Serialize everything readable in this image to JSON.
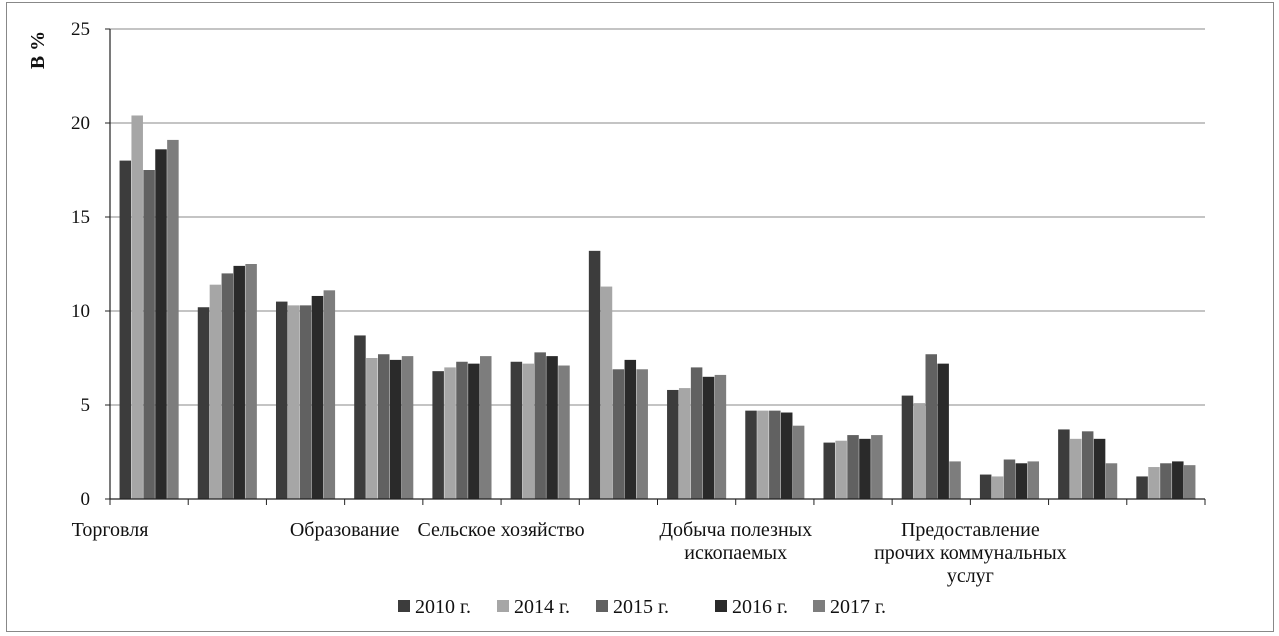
{
  "chart_data": {
    "type": "bar",
    "title": "",
    "xlabel": "",
    "ylabel": "В %",
    "ylim": [
      0,
      25
    ],
    "yticks": [
      0,
      5,
      10,
      15,
      20,
      25
    ],
    "grid": true,
    "legend_position": "bottom",
    "category_labels": [
      {
        "slot": 0,
        "lines": [
          "Торговля"
        ]
      },
      {
        "slot": 3,
        "lines": [
          "Образование"
        ]
      },
      {
        "slot": 5,
        "lines": [
          "Сельское хозяйство"
        ]
      },
      {
        "slot": 8,
        "lines": [
          "Добыча полезных",
          "ископаемых"
        ]
      },
      {
        "slot": 11,
        "lines": [
          "Предоставление",
          "прочих коммунальных",
          "услуг"
        ]
      }
    ],
    "categories": [
      "Торговля",
      "",
      "",
      "Образование",
      "",
      "",
      "Сельское хозяйство",
      "",
      "",
      "Добыча полезных ископаемых",
      "",
      "",
      "Предоставление прочих коммунальных услуг",
      ""
    ],
    "series": [
      {
        "name": "2010 г.",
        "color": "#3c3c3c",
        "values": [
          18.0,
          10.2,
          10.5,
          8.7,
          6.8,
          7.3,
          13.2,
          5.8,
          4.7,
          3.0,
          5.5,
          1.3,
          3.7,
          1.2
        ]
      },
      {
        "name": "2014 г.",
        "color": "#a6a6a6",
        "values": [
          20.4,
          11.4,
          10.3,
          7.5,
          7.0,
          7.2,
          11.3,
          5.9,
          4.7,
          3.1,
          5.1,
          1.2,
          3.2,
          1.7
        ]
      },
      {
        "name": "2015 г.",
        "color": "#616161",
        "values": [
          17.5,
          12.0,
          10.3,
          7.7,
          7.3,
          7.8,
          6.9,
          7.0,
          4.7,
          3.4,
          7.7,
          2.1,
          3.6,
          1.9
        ]
      },
      {
        "name": "2016 г.",
        "color": "#2a2a2a",
        "values": [
          18.6,
          12.4,
          10.8,
          7.4,
          7.2,
          7.6,
          7.4,
          6.5,
          4.6,
          3.2,
          7.2,
          1.9,
          3.2,
          2.0
        ]
      },
      {
        "name": "2017 г.",
        "color": "#7d7d7d",
        "values": [
          19.1,
          12.5,
          11.1,
          7.6,
          7.6,
          7.1,
          6.9,
          6.6,
          3.9,
          3.4,
          2.0,
          2.0,
          1.9,
          1.8
        ]
      }
    ]
  }
}
